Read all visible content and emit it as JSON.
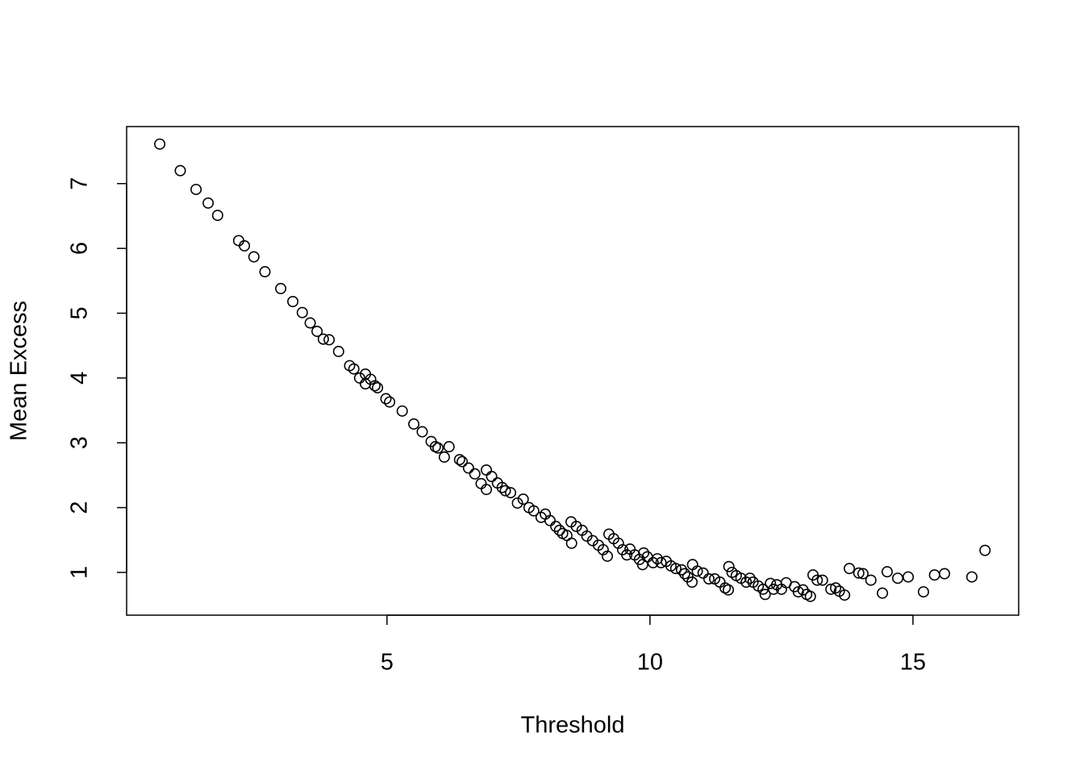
{
  "chart_data": {
    "type": "scatter",
    "xlabel": "Threshold",
    "ylabel": "Mean Excess",
    "xlim": [
      0.05,
      17.01
    ],
    "ylim": [
      0.34,
      7.88
    ],
    "xticks": [
      5,
      10,
      15
    ],
    "yticks": [
      1,
      2,
      3,
      4,
      5,
      6,
      7
    ],
    "color": "#000000",
    "x": [
      0.68,
      1.07,
      1.37,
      1.6,
      1.78,
      2.18,
      2.29,
      2.47,
      2.68,
      2.98,
      3.21,
      3.39,
      3.54,
      3.67,
      3.79,
      3.9,
      4.08,
      4.29,
      4.37,
      4.48,
      4.59,
      4.59,
      4.69,
      4.77,
      4.82,
      4.98,
      5.05,
      5.29,
      5.51,
      5.67,
      5.84,
      5.92,
      5.97,
      6.09,
      6.18,
      6.38,
      6.43,
      6.55,
      6.67,
      6.79,
      6.89,
      6.89,
      6.99,
      7.1,
      7.19,
      7.25,
      7.35,
      7.48,
      7.59,
      7.7,
      7.79,
      7.93,
      8.01,
      8.1,
      8.21,
      8.28,
      8.34,
      8.42,
      8.5,
      8.51,
      8.6,
      8.71,
      8.8,
      8.91,
      9.02,
      9.11,
      9.19,
      9.22,
      9.31,
      9.4,
      9.48,
      9.56,
      9.62,
      9.71,
      9.8,
      9.86,
      9.88,
      9.95,
      10.06,
      10.14,
      10.21,
      10.31,
      10.4,
      10.49,
      10.6,
      10.66,
      10.72,
      10.8,
      10.81,
      10.9,
      11.01,
      11.12,
      11.23,
      11.33,
      11.43,
      11.49,
      11.5,
      11.56,
      11.64,
      11.73,
      11.83,
      11.9,
      11.96,
      12.06,
      12.15,
      12.19,
      12.29,
      12.35,
      12.41,
      12.5,
      12.59,
      12.75,
      12.82,
      12.91,
      12.98,
      13.05,
      13.1,
      13.18,
      13.28,
      13.44,
      13.53,
      13.6,
      13.7,
      13.79,
      13.97,
      14.05,
      14.2,
      14.42,
      14.51,
      14.71,
      14.91,
      15.2,
      15.41,
      15.6,
      16.12,
      16.37
    ],
    "values": [
      7.61,
      7.2,
      6.91,
      6.7,
      6.51,
      6.12,
      6.04,
      5.87,
      5.64,
      5.38,
      5.18,
      5.01,
      4.85,
      4.72,
      4.6,
      4.59,
      4.41,
      4.19,
      4.14,
      4.0,
      4.06,
      3.91,
      3.98,
      3.88,
      3.85,
      3.68,
      3.63,
      3.49,
      3.29,
      3.17,
      3.02,
      2.94,
      2.92,
      2.78,
      2.94,
      2.74,
      2.71,
      2.61,
      2.52,
      2.37,
      2.58,
      2.28,
      2.48,
      2.38,
      2.31,
      2.26,
      2.23,
      2.07,
      2.13,
      2.0,
      1.95,
      1.85,
      1.9,
      1.8,
      1.71,
      1.65,
      1.6,
      1.57,
      1.78,
      1.45,
      1.71,
      1.65,
      1.56,
      1.49,
      1.42,
      1.35,
      1.25,
      1.59,
      1.52,
      1.45,
      1.35,
      1.27,
      1.36,
      1.27,
      1.2,
      1.12,
      1.3,
      1.24,
      1.15,
      1.21,
      1.15,
      1.17,
      1.1,
      1.06,
      1.04,
      0.98,
      0.93,
      0.85,
      1.12,
      1.02,
      0.99,
      0.9,
      0.9,
      0.85,
      0.76,
      0.73,
      1.09,
      1.0,
      0.95,
      0.91,
      0.85,
      0.91,
      0.85,
      0.79,
      0.74,
      0.66,
      0.83,
      0.74,
      0.81,
      0.74,
      0.84,
      0.78,
      0.7,
      0.73,
      0.66,
      0.63,
      0.96,
      0.88,
      0.88,
      0.74,
      0.76,
      0.71,
      0.65,
      1.06,
      0.99,
      0.98,
      0.88,
      0.68,
      1.01,
      0.91,
      0.93,
      0.7,
      0.96,
      0.98,
      0.93,
      1.34
    ]
  }
}
